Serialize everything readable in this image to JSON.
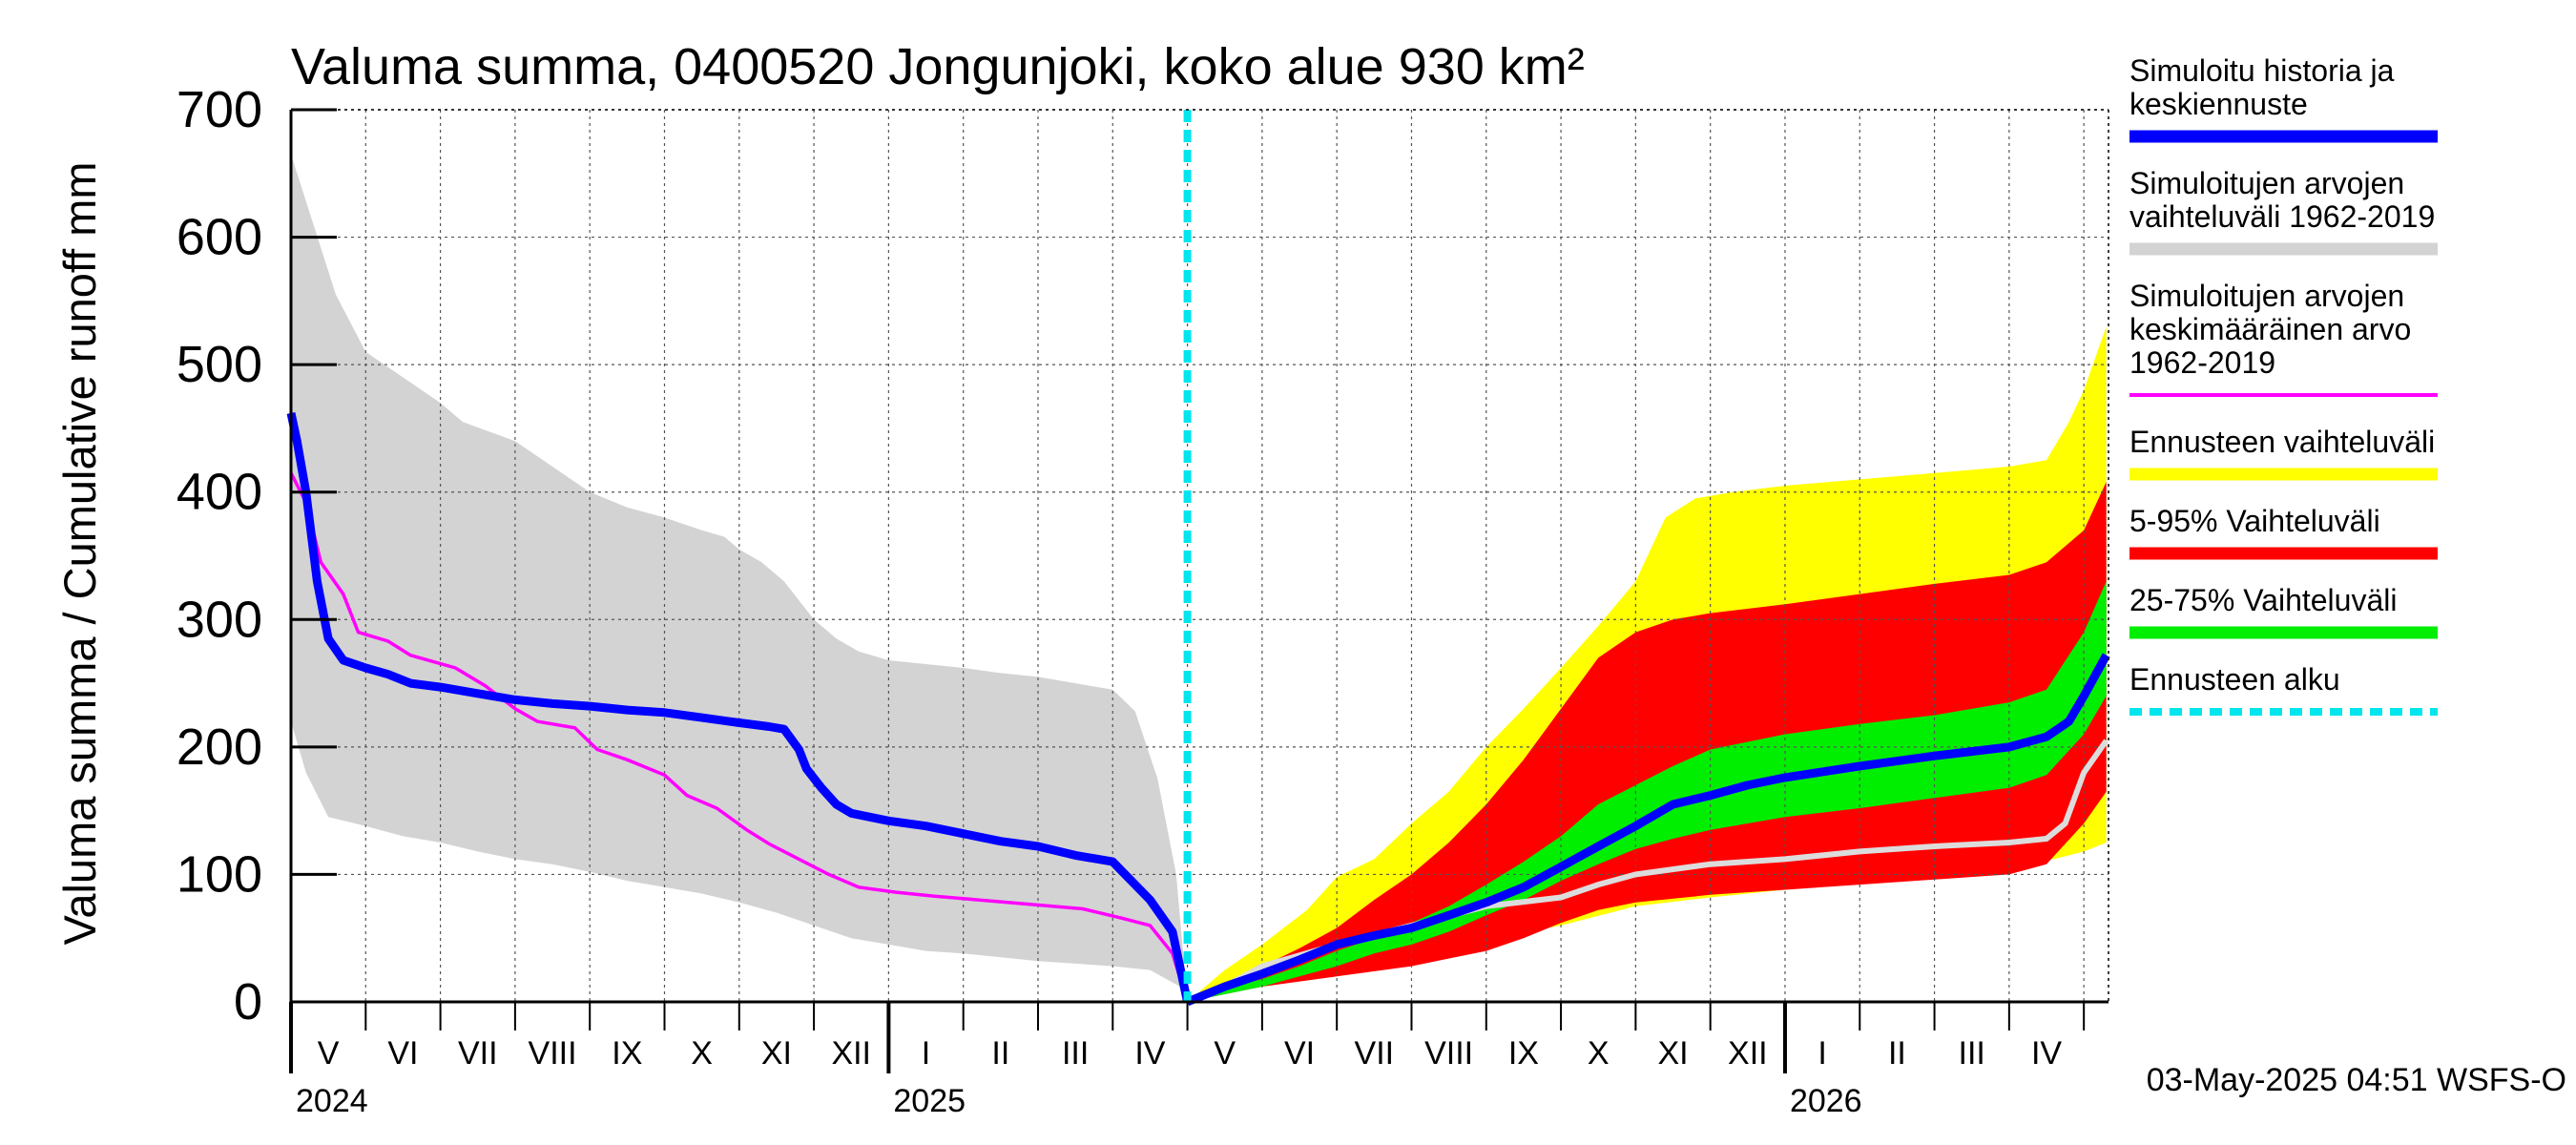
{
  "chart_data": {
    "type": "area",
    "title": "Valuma summa, 0400520 Jongunjoki, koko alue 930 km²",
    "ylabel": "Valuma summa / Cumulative runoff    mm",
    "ylim": [
      0,
      700
    ],
    "yticks": [
      0,
      100,
      200,
      300,
      400,
      500,
      600,
      700
    ],
    "x_start": "2024-05-01",
    "x_end": "2026-05-31",
    "forecast_start": "2025-05-01",
    "month_labels": [
      {
        "label": "V",
        "mid": 0.5
      },
      {
        "label": "VI",
        "mid": 1.5
      },
      {
        "label": "VII",
        "mid": 2.5
      },
      {
        "label": "VIII",
        "mid": 3.5
      },
      {
        "label": "IX",
        "mid": 4.5
      },
      {
        "label": "X",
        "mid": 5.5
      },
      {
        "label": "XI",
        "mid": 6.5
      },
      {
        "label": "XII",
        "mid": 7.5
      },
      {
        "label": "I",
        "mid": 8.5
      },
      {
        "label": "II",
        "mid": 9.5
      },
      {
        "label": "III",
        "mid": 10.5
      },
      {
        "label": "IV",
        "mid": 11.5
      },
      {
        "label": "V",
        "mid": 12.5
      },
      {
        "label": "VI",
        "mid": 13.5
      },
      {
        "label": "VII",
        "mid": 14.5
      },
      {
        "label": "VIII",
        "mid": 15.5
      },
      {
        "label": "IX",
        "mid": 16.5
      },
      {
        "label": "X",
        "mid": 17.5
      },
      {
        "label": "XI",
        "mid": 18.5
      },
      {
        "label": "XII",
        "mid": 19.5
      },
      {
        "label": "I",
        "mid": 20.5
      },
      {
        "label": "II",
        "mid": 21.5
      },
      {
        "label": "III",
        "mid": 22.5
      },
      {
        "label": "IV",
        "mid": 23.5
      },
      {
        "label": "",
        "mid": 24.5
      }
    ],
    "year_labels": [
      {
        "label": "2024",
        "month": 0
      },
      {
        "label": "2025",
        "month": 8
      },
      {
        "label": "2026",
        "month": 20
      }
    ],
    "hist_range_upper": [
      [
        0,
        665
      ],
      [
        0.3,
        610
      ],
      [
        0.6,
        555
      ],
      [
        1,
        510
      ],
      [
        1.5,
        490
      ],
      [
        2,
        470
      ],
      [
        2.3,
        455
      ],
      [
        3,
        440
      ],
      [
        3.5,
        420
      ],
      [
        4,
        400
      ],
      [
        4.5,
        388
      ],
      [
        5,
        380
      ],
      [
        5.5,
        370
      ],
      [
        5.8,
        365
      ],
      [
        6,
        355
      ],
      [
        6.3,
        345
      ],
      [
        6.6,
        330
      ],
      [
        7,
        300
      ],
      [
        7.3,
        285
      ],
      [
        7.6,
        275
      ],
      [
        8,
        268
      ],
      [
        8.5,
        265
      ],
      [
        9,
        262
      ],
      [
        9.5,
        258
      ],
      [
        10,
        255
      ],
      [
        10.5,
        250
      ],
      [
        11,
        245
      ],
      [
        11.3,
        228
      ],
      [
        11.6,
        175
      ],
      [
        11.85,
        100
      ],
      [
        12,
        0
      ]
    ],
    "hist_range_lower": [
      [
        0,
        220
      ],
      [
        0.2,
        180
      ],
      [
        0.5,
        145
      ],
      [
        1,
        138
      ],
      [
        1.5,
        130
      ],
      [
        2,
        125
      ],
      [
        2.5,
        118
      ],
      [
        3,
        112
      ],
      [
        3.5,
        108
      ],
      [
        4,
        102
      ],
      [
        4.5,
        95
      ],
      [
        5,
        90
      ],
      [
        5.5,
        85
      ],
      [
        6,
        78
      ],
      [
        6.5,
        70
      ],
      [
        7,
        60
      ],
      [
        7.5,
        50
      ],
      [
        8,
        45
      ],
      [
        8.5,
        40
      ],
      [
        9,
        38
      ],
      [
        9.5,
        35
      ],
      [
        10,
        32
      ],
      [
        10.5,
        30
      ],
      [
        11,
        28
      ],
      [
        11.5,
        25
      ],
      [
        11.9,
        12
      ],
      [
        12,
        0
      ]
    ],
    "hist_mean": [
      [
        0,
        415
      ],
      [
        0.2,
        392
      ],
      [
        0.4,
        345
      ],
      [
        0.7,
        320
      ],
      [
        0.9,
        290
      ],
      [
        1.3,
        283
      ],
      [
        1.6,
        272
      ],
      [
        2.2,
        262
      ],
      [
        2.6,
        248
      ],
      [
        3,
        230
      ],
      [
        3.3,
        220
      ],
      [
        3.8,
        215
      ],
      [
        4.1,
        198
      ],
      [
        4.5,
        190
      ],
      [
        5,
        178
      ],
      [
        5.3,
        162
      ],
      [
        5.7,
        152
      ],
      [
        6.1,
        135
      ],
      [
        6.4,
        124
      ],
      [
        6.8,
        112
      ],
      [
        7.2,
        100
      ],
      [
        7.6,
        90
      ],
      [
        8.1,
        86
      ],
      [
        8.6,
        83
      ],
      [
        9.2,
        80
      ],
      [
        9.8,
        77
      ],
      [
        10.6,
        73
      ],
      [
        11.1,
        66
      ],
      [
        11.5,
        60
      ],
      [
        11.8,
        38
      ],
      [
        12,
        0
      ]
    ],
    "sim_history": [
      [
        0,
        462
      ],
      [
        0.08,
        440
      ],
      [
        0.2,
        400
      ],
      [
        0.35,
        330
      ],
      [
        0.5,
        285
      ],
      [
        0.7,
        268
      ],
      [
        1,
        262
      ],
      [
        1.3,
        257
      ],
      [
        1.6,
        250
      ],
      [
        2,
        247
      ],
      [
        2.5,
        242
      ],
      [
        3,
        237
      ],
      [
        3.5,
        234
      ],
      [
        4,
        232
      ],
      [
        4.5,
        229
      ],
      [
        5,
        227
      ],
      [
        5.5,
        223
      ],
      [
        6,
        219
      ],
      [
        6.4,
        216
      ],
      [
        6.6,
        214
      ],
      [
        6.8,
        198
      ],
      [
        6.9,
        183
      ],
      [
        7.1,
        168
      ],
      [
        7.3,
        155
      ],
      [
        7.5,
        148
      ],
      [
        8,
        142
      ],
      [
        8.5,
        138
      ],
      [
        9,
        132
      ],
      [
        9.5,
        126
      ],
      [
        10,
        122
      ],
      [
        10.5,
        115
      ],
      [
        11,
        110
      ],
      [
        11.2,
        98
      ],
      [
        11.5,
        80
      ],
      [
        11.8,
        55
      ],
      [
        12,
        0
      ]
    ],
    "forecast_range_upper": [
      [
        12,
        0
      ],
      [
        12.5,
        25
      ],
      [
        13,
        45
      ],
      [
        13.6,
        72
      ],
      [
        14,
        98
      ],
      [
        14.5,
        112
      ],
      [
        15,
        140
      ],
      [
        15.5,
        165
      ],
      [
        16,
        200
      ],
      [
        16.5,
        230
      ],
      [
        17,
        262
      ],
      [
        17.5,
        295
      ],
      [
        18,
        330
      ],
      [
        18.4,
        380
      ],
      [
        18.8,
        395
      ],
      [
        19.3,
        400
      ],
      [
        20,
        405
      ],
      [
        21,
        410
      ],
      [
        22,
        415
      ],
      [
        23,
        420
      ],
      [
        23.5,
        425
      ],
      [
        23.8,
        455
      ],
      [
        24,
        480
      ],
      [
        24.3,
        530
      ]
    ],
    "forecast_range_lower": [
      [
        12,
        0
      ],
      [
        13,
        15
      ],
      [
        14,
        25
      ],
      [
        15,
        35
      ],
      [
        16,
        48
      ],
      [
        17,
        60
      ],
      [
        18,
        75
      ],
      [
        19,
        82
      ],
      [
        20,
        88
      ],
      [
        21,
        95
      ],
      [
        22,
        100
      ],
      [
        23,
        108
      ],
      [
        23.6,
        112
      ],
      [
        24,
        118
      ],
      [
        24.3,
        125
      ]
    ],
    "p5_95_upper": [
      [
        12,
        0
      ],
      [
        12.5,
        15
      ],
      [
        13,
        28
      ],
      [
        13.5,
        42
      ],
      [
        14,
        58
      ],
      [
        14.5,
        80
      ],
      [
        15,
        100
      ],
      [
        15.5,
        125
      ],
      [
        16,
        155
      ],
      [
        16.5,
        190
      ],
      [
        17,
        230
      ],
      [
        17.5,
        270
      ],
      [
        18,
        290
      ],
      [
        18.5,
        300
      ],
      [
        19,
        305
      ],
      [
        20,
        312
      ],
      [
        21,
        320
      ],
      [
        22,
        328
      ],
      [
        23,
        335
      ],
      [
        23.5,
        345
      ],
      [
        24,
        370
      ],
      [
        24.3,
        408
      ]
    ],
    "p5_95_lower": [
      [
        12,
        0
      ],
      [
        13,
        12
      ],
      [
        14,
        20
      ],
      [
        15,
        28
      ],
      [
        16,
        40
      ],
      [
        16.5,
        50
      ],
      [
        17,
        62
      ],
      [
        17.5,
        72
      ],
      [
        18,
        78
      ],
      [
        19,
        84
      ],
      [
        20,
        88
      ],
      [
        21,
        92
      ],
      [
        22,
        96
      ],
      [
        23,
        100
      ],
      [
        23.5,
        108
      ],
      [
        24,
        140
      ],
      [
        24.3,
        165
      ]
    ],
    "p25_75_upper": [
      [
        12,
        0
      ],
      [
        12.5,
        10
      ],
      [
        13,
        18
      ],
      [
        13.5,
        28
      ],
      [
        14,
        40
      ],
      [
        14.5,
        50
      ],
      [
        15,
        62
      ],
      [
        15.5,
        75
      ],
      [
        16,
        92
      ],
      [
        16.5,
        110
      ],
      [
        17,
        130
      ],
      [
        17.5,
        155
      ],
      [
        18,
        170
      ],
      [
        18.5,
        185
      ],
      [
        19,
        198
      ],
      [
        20,
        210
      ],
      [
        21,
        218
      ],
      [
        22,
        225
      ],
      [
        23,
        235
      ],
      [
        23.5,
        245
      ],
      [
        24,
        290
      ],
      [
        24.3,
        330
      ]
    ],
    "p25_75_lower": [
      [
        12,
        0
      ],
      [
        12.5,
        6
      ],
      [
        13,
        12
      ],
      [
        13.5,
        20
      ],
      [
        14,
        28
      ],
      [
        14.5,
        38
      ],
      [
        15,
        45
      ],
      [
        15.5,
        55
      ],
      [
        16,
        68
      ],
      [
        16.5,
        80
      ],
      [
        17,
        95
      ],
      [
        17.5,
        108
      ],
      [
        18,
        120
      ],
      [
        18.5,
        128
      ],
      [
        19,
        135
      ],
      [
        20,
        145
      ],
      [
        21,
        152
      ],
      [
        22,
        160
      ],
      [
        23,
        168
      ],
      [
        23.5,
        178
      ],
      [
        24,
        210
      ],
      [
        24.3,
        240
      ]
    ],
    "forecast_median": [
      [
        12,
        0
      ],
      [
        12.5,
        12
      ],
      [
        13,
        22
      ],
      [
        13.5,
        33
      ],
      [
        14,
        45
      ],
      [
        14.5,
        52
      ],
      [
        15,
        58
      ],
      [
        15.5,
        68
      ],
      [
        16,
        78
      ],
      [
        16.5,
        90
      ],
      [
        17,
        106
      ],
      [
        17.5,
        122
      ],
      [
        18,
        138
      ],
      [
        18.5,
        155
      ],
      [
        19,
        162
      ],
      [
        19.5,
        170
      ],
      [
        20,
        176
      ],
      [
        21,
        185
      ],
      [
        22,
        193
      ],
      [
        23,
        200
      ],
      [
        23.5,
        208
      ],
      [
        23.8,
        220
      ],
      [
        24,
        240
      ],
      [
        24.3,
        272
      ]
    ],
    "forecast_mean_continuation": [
      [
        12,
        0
      ],
      [
        12.5,
        12
      ],
      [
        13,
        28
      ],
      [
        14,
        45
      ],
      [
        15,
        60
      ],
      [
        16,
        75
      ],
      [
        17,
        82
      ],
      [
        17.5,
        92
      ],
      [
        18,
        100
      ],
      [
        19,
        108
      ],
      [
        20,
        112
      ],
      [
        21,
        118
      ],
      [
        22,
        122
      ],
      [
        23,
        125
      ],
      [
        23.5,
        128
      ],
      [
        23.75,
        140
      ],
      [
        24,
        180
      ],
      [
        24.3,
        205
      ]
    ],
    "legend": [
      {
        "lines": [
          "Simuloitu historia ja",
          "keskiennuste"
        ],
        "color": "#0000ff",
        "style": "thick"
      },
      {
        "lines": [
          "Simuloitujen arvojen",
          "vaihteluväli 1962-2019"
        ],
        "color": "#d3d3d3",
        "style": "thick"
      },
      {
        "lines": [
          "Simuloitujen arvojen",
          "keskimääräinen arvo",
          "   1962-2019"
        ],
        "color": "#ff00ff",
        "style": "thin"
      },
      {
        "lines": [
          "Ennusteen vaihteluväli"
        ],
        "color": "#ffff00",
        "style": "thick"
      },
      {
        "lines": [
          "5-95% Vaihteluväli"
        ],
        "color": "#ff0000",
        "style": "thick"
      },
      {
        "lines": [
          "25-75% Vaihteluväli"
        ],
        "color": "#00ee00",
        "style": "thick"
      },
      {
        "lines": [
          "Ennusteen alku"
        ],
        "color": "#00e5ee",
        "style": "dashed"
      }
    ],
    "footer": "03-May-2025 04:51 WSFS-O"
  },
  "colors": {
    "hist_range": "#d3d3d3",
    "forecast_range": "#ffff00",
    "p5_95": "#ff0000",
    "p25_75": "#00ee00",
    "sim_history": "#0000ff",
    "hist_mean": "#ff00ff",
    "forecast_mean": "#dcdcdc",
    "forecast_start": "#00e5ee"
  }
}
